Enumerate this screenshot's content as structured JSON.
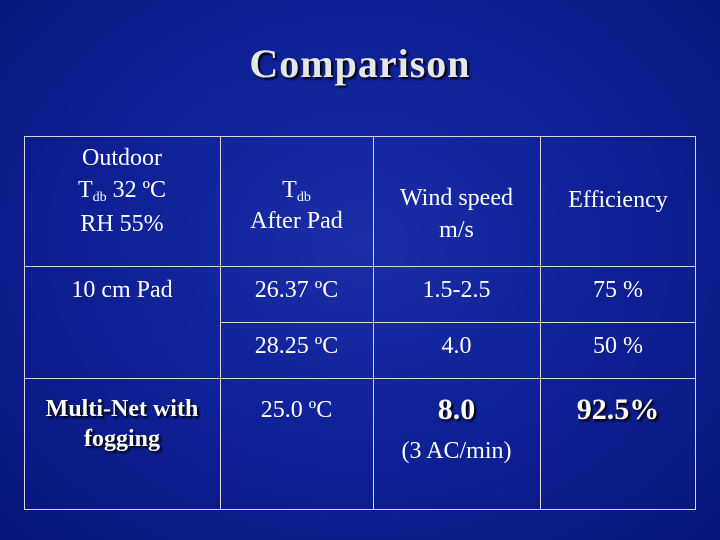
{
  "slide": {
    "title": "Comparison"
  },
  "table": {
    "header": {
      "col1_line1": "Outdoor",
      "col1_tdb_prefix": "T",
      "col1_tdb_sub": "db",
      "col1_tdb_value": " 32 ºC",
      "col1_rh": "RH  55%",
      "col2_prefix": "T",
      "col2_sub": "db",
      "col2_line2": "After Pad",
      "col3_line1": "Wind speed",
      "col3_line2": "m/s",
      "col4": "Efficiency"
    },
    "rows": [
      {
        "label": "10 cm Pad",
        "tdb": "26.37 ºC",
        "wind": "1.5-2.5",
        "efficiency": "75 %"
      },
      {
        "label": "",
        "tdb": "28.25 ºC",
        "wind": "4.0",
        "efficiency": "50 %"
      },
      {
        "label_line1": "Multi-Net with",
        "label_line2": "fogging",
        "tdb": "25.0 ºC",
        "wind": "8.0",
        "wind_note": "(3 AC/min)",
        "efficiency": "92.5%"
      }
    ]
  },
  "colors": {
    "background": "#0d1f93",
    "grid": "#d8d8d8",
    "text": "#ffffff"
  }
}
